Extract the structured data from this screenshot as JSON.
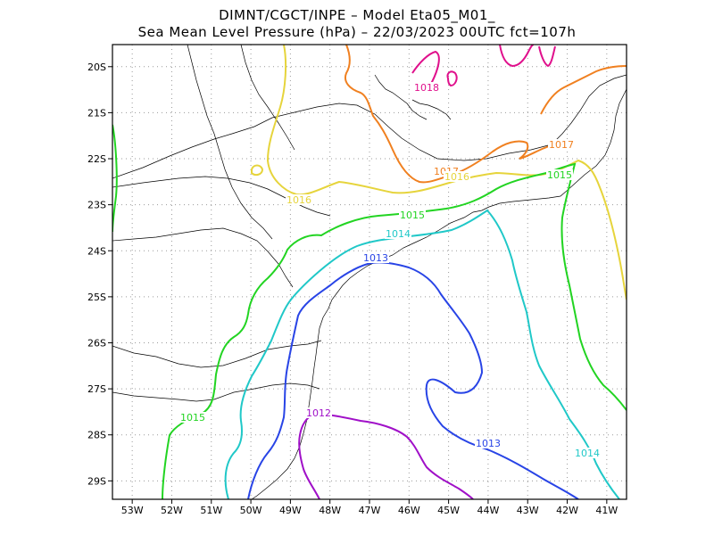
{
  "header": {
    "line1": "DIMNT/CGCT/INPE –  Model Eta05_M01_",
    "line2": "Sea Mean Level Pressure (hPa) – 22/03/2023 00UTC fct=107h"
  },
  "axes": {
    "lon_labels": [
      "53W",
      "52W",
      "51W",
      "50W",
      "49W",
      "48W",
      "47W",
      "46W",
      "45W",
      "44W",
      "43W",
      "42W",
      "41W"
    ],
    "lat_labels": [
      "20S",
      "21S",
      "22S",
      "23S",
      "24S",
      "25S",
      "26S",
      "27S",
      "28S",
      "29S"
    ]
  },
  "contour_labels": [
    {
      "text": "1018",
      "color": "#e0108c"
    },
    {
      "text": "1017",
      "color": "#f08020"
    },
    {
      "text": "1017",
      "color": "#f08020"
    },
    {
      "text": "1016",
      "color": "#e6d43c"
    },
    {
      "text": "1016",
      "color": "#e6d43c"
    },
    {
      "text": "1015",
      "color": "#22d422"
    },
    {
      "text": "1015",
      "color": "#22d422"
    },
    {
      "text": "1015",
      "color": "#22d422"
    },
    {
      "text": "1014",
      "color": "#20c8c8"
    },
    {
      "text": "1014",
      "color": "#20c8c8"
    },
    {
      "text": "1013",
      "color": "#2844e6"
    },
    {
      "text": "1013",
      "color": "#2844e6"
    },
    {
      "text": "1012",
      "color": "#a010c8"
    }
  ],
  "colors": {
    "c1018": "#e0108c",
    "c1017": "#f08020",
    "c1016": "#e6d43c",
    "c1015": "#22d422",
    "c1014": "#20c8c8",
    "c1013": "#2844e6",
    "c1012": "#a010c8"
  }
}
